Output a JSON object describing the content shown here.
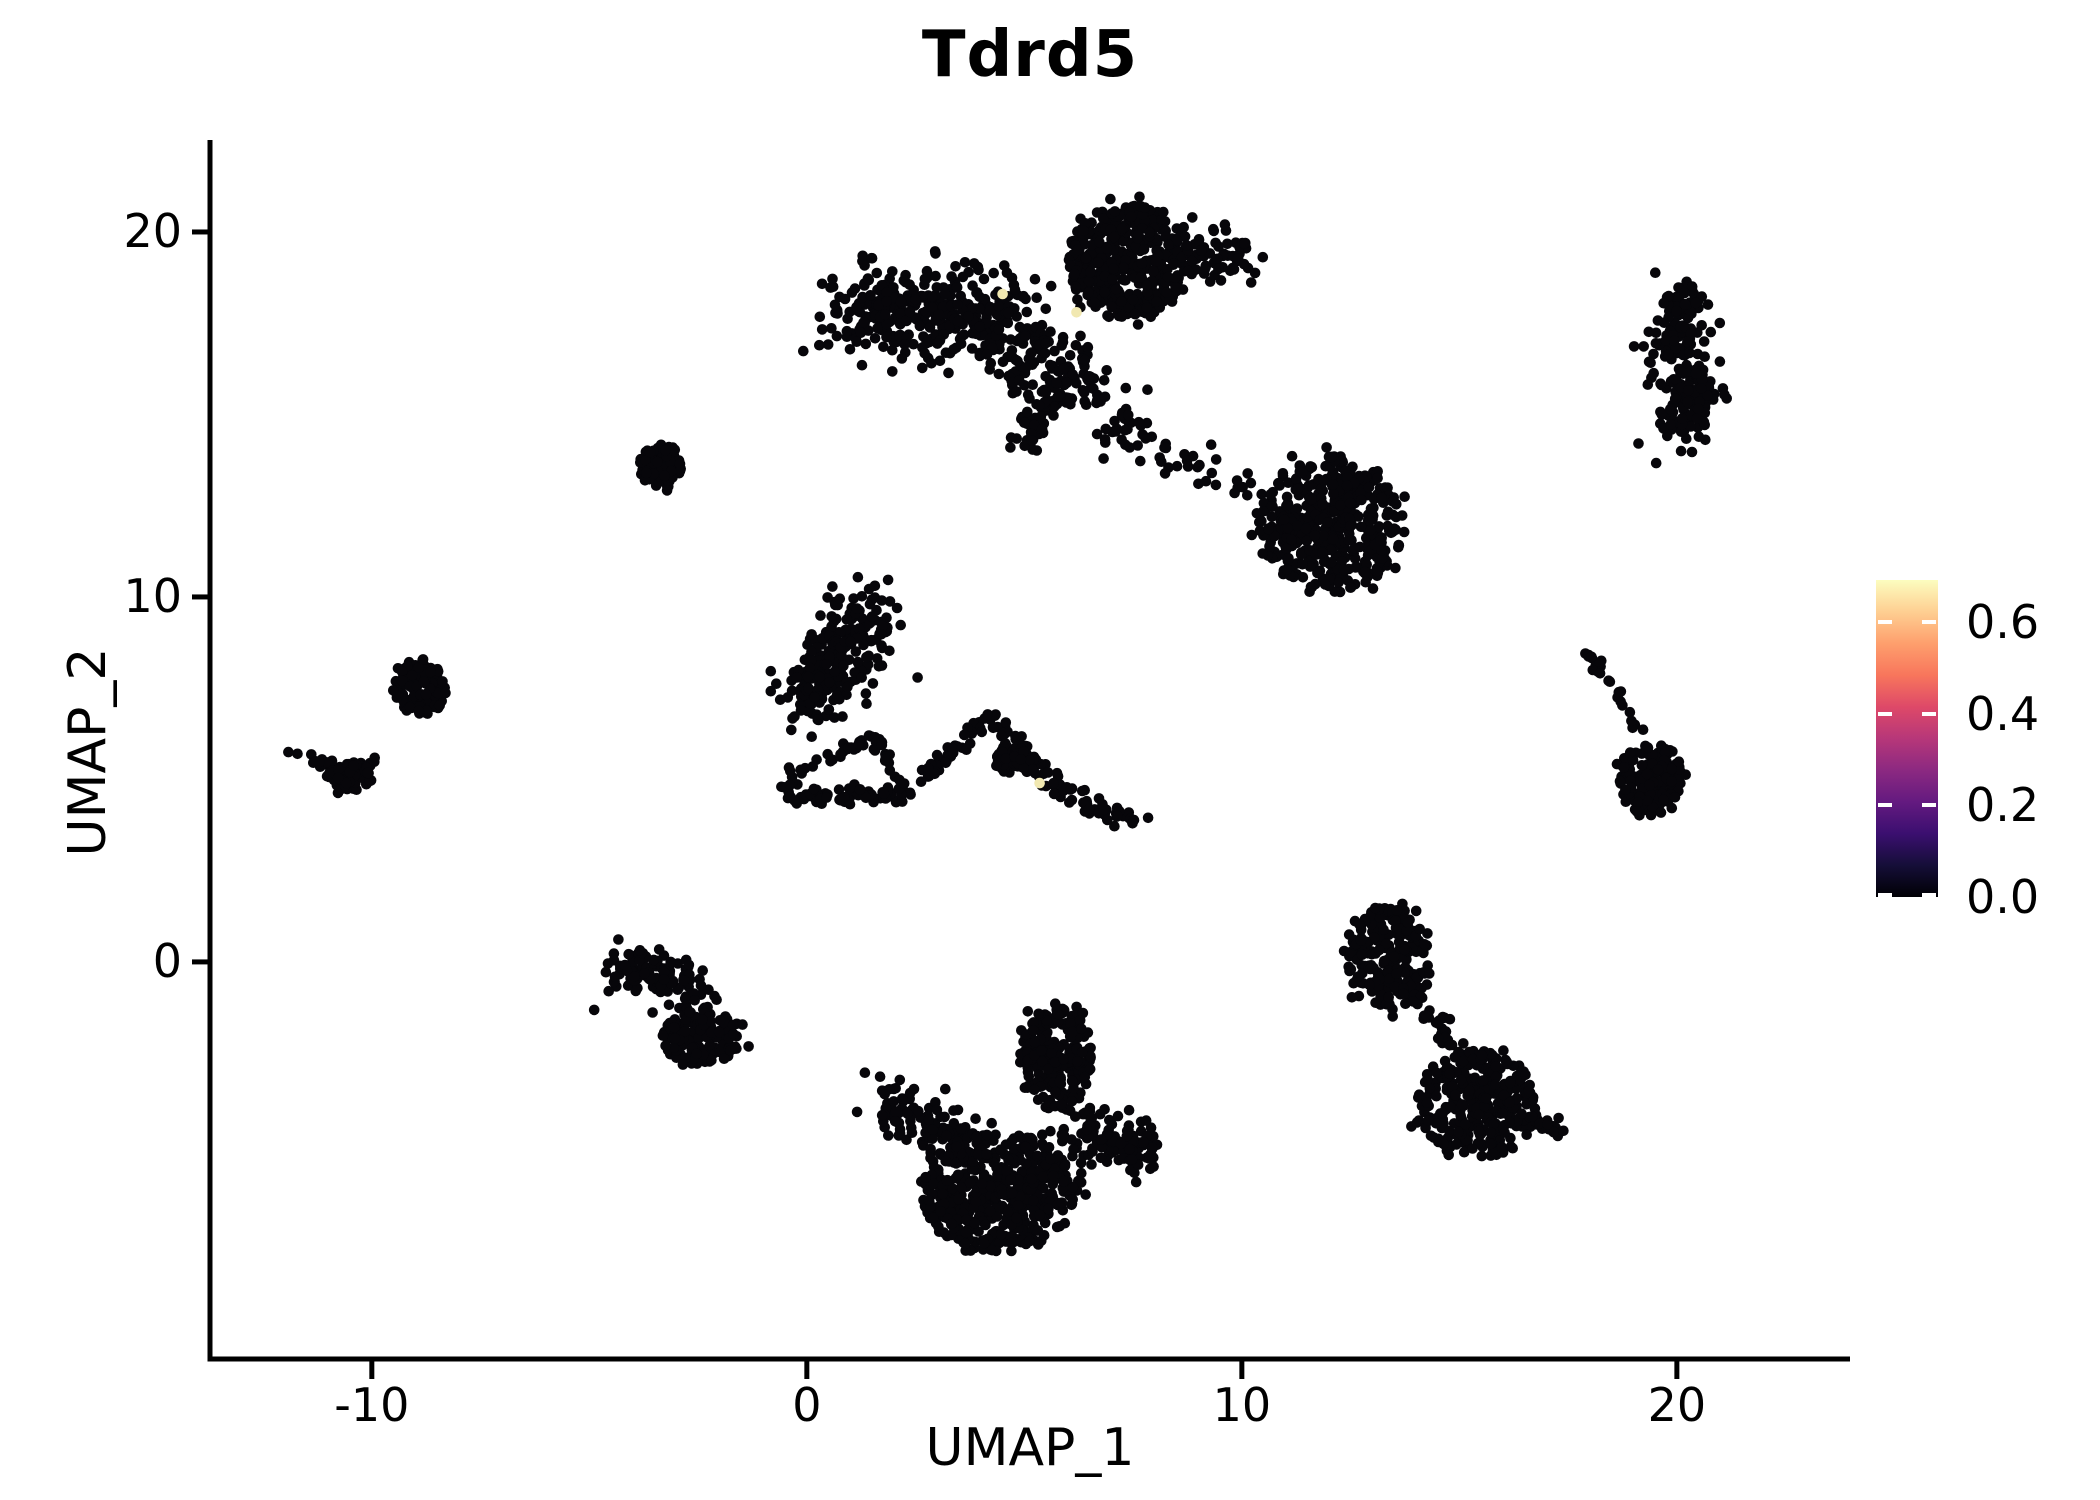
{
  "title": "Tdrd5",
  "chart_data": {
    "type": "scatter",
    "title": "Tdrd5",
    "xlabel": "UMAP_1",
    "ylabel": "UMAP_2",
    "xlim": [
      -13.72,
      23.98
    ],
    "ylim": [
      -10.88,
      22.52
    ],
    "x_ticks": [
      -10,
      0,
      10,
      20
    ],
    "x_tick_labels": [
      "-10",
      "0",
      "10",
      "20"
    ],
    "y_ticks": [
      0,
      10,
      20
    ],
    "y_tick_labels": [
      "0",
      "10",
      "20"
    ],
    "grid": false,
    "point_color": "#07060a",
    "highlight_color": "#f1e8b1",
    "point_radius_px": 5.3,
    "legend": {
      "position": "right",
      "vmin": 0.0,
      "vmax": 0.692,
      "colormap": "magma",
      "ticks": [
        0.0,
        0.2,
        0.4,
        0.6
      ],
      "tick_labels": [
        "0.0",
        "0.2",
        "0.4",
        "0.6"
      ],
      "gradient_stops_top_to_bottom": [
        "#fcfdbf",
        "#fecf92",
        "#fe9f6d",
        "#f8765c",
        "#de4968",
        "#b73779",
        "#8c2981",
        "#641a80",
        "#3b0f70",
        "#150e38",
        "#000004"
      ]
    },
    "clusters": [
      {
        "id": "top-band",
        "kind": "path",
        "points": [
          [
            1.0,
            17.5
          ],
          [
            2.0,
            17.9
          ],
          [
            3.1,
            17.8
          ],
          [
            4.2,
            17.5
          ],
          [
            5.0,
            17.3
          ]
        ],
        "sd": 0.55,
        "n": 400
      },
      {
        "id": "top-blob",
        "kind": "blob",
        "cx": 7.35,
        "cy": 19.2,
        "rx": 1.35,
        "ry": 1.6,
        "n": 430
      },
      {
        "id": "top-right-arm",
        "kind": "path",
        "points": [
          [
            8.5,
            19.0
          ],
          [
            9.2,
            19.6
          ],
          [
            10.0,
            19.3
          ]
        ],
        "sd": 0.38,
        "n": 80
      },
      {
        "id": "top-neck",
        "kind": "blob",
        "cx": 5.7,
        "cy": 16.2,
        "rx": 1.1,
        "ry": 1.1,
        "n": 90
      },
      {
        "id": "top-tail",
        "kind": "path",
        "points": [
          [
            5.7,
            15.7
          ],
          [
            5.3,
            14.9
          ],
          [
            4.95,
            14.2
          ]
        ],
        "sd": 0.17,
        "n": 60
      },
      {
        "id": "top-bridge",
        "kind": "path",
        "points": [
          [
            6.5,
            15.7
          ],
          [
            7.3,
            15.2
          ],
          [
            7.1,
            14.4
          ],
          [
            8.1,
            14.4
          ],
          [
            8.7,
            13.6
          ],
          [
            9.5,
            13.4
          ],
          [
            10.2,
            12.8
          ]
        ],
        "sd": 0.27,
        "n": 70
      },
      {
        "id": "mid-right-blob",
        "kind": "blob",
        "cx": 12.05,
        "cy": 12.0,
        "rx": 1.65,
        "ry": 1.9,
        "n": 460
      },
      {
        "id": "far-right-column",
        "kind": "path",
        "points": [
          [
            20.35,
            18.2
          ],
          [
            19.9,
            17.3
          ],
          [
            20.15,
            16.3
          ],
          [
            20.45,
            15.4
          ],
          [
            20.05,
            14.5
          ]
        ],
        "sd": 0.34,
        "n": 220
      },
      {
        "id": "right-hook-chain",
        "kind": "path",
        "points": [
          [
            17.9,
            8.55
          ],
          [
            18.35,
            7.9
          ],
          [
            18.75,
            7.1
          ],
          [
            19.05,
            6.3
          ]
        ],
        "sd": 0.07,
        "n": 26
      },
      {
        "id": "right-hook-blob",
        "kind": "blob",
        "cx": 19.4,
        "cy": 5.0,
        "rx": 0.75,
        "ry": 1.05,
        "n": 160
      },
      {
        "id": "bottom-right-top-lobe",
        "kind": "blob",
        "cx": 13.35,
        "cy": 0.1,
        "rx": 0.95,
        "ry": 1.45,
        "n": 240
      },
      {
        "id": "bottom-right-neck",
        "kind": "path",
        "points": [
          [
            14.15,
            -1.2
          ],
          [
            14.85,
            -2.3
          ],
          [
            15.25,
            -3.0
          ]
        ],
        "sd": 0.16,
        "n": 32
      },
      {
        "id": "bottom-right-bottom-lobe",
        "kind": "blob",
        "cx": 15.4,
        "cy": -3.9,
        "rx": 1.4,
        "ry": 1.5,
        "n": 320
      },
      {
        "id": "bottom-right-tail",
        "kind": "path",
        "points": [
          [
            16.6,
            -4.3
          ],
          [
            17.25,
            -4.6
          ]
        ],
        "sd": 0.14,
        "n": 18
      },
      {
        "id": "bottom-center-top-lobe",
        "kind": "blob",
        "cx": 5.75,
        "cy": -2.6,
        "rx": 0.85,
        "ry": 1.5,
        "n": 230
      },
      {
        "id": "bottom-center-left-arm",
        "kind": "path",
        "points": [
          [
            1.75,
            -3.7
          ],
          [
            2.7,
            -4.3
          ],
          [
            3.7,
            -4.9
          ]
        ],
        "sd": 0.36,
        "n": 95
      },
      {
        "id": "bottom-center-core",
        "kind": "blob",
        "cx": 4.4,
        "cy": -6.3,
        "rx": 1.75,
        "ry": 1.65,
        "n": 520
      },
      {
        "id": "bottom-center-right-arm",
        "kind": "path",
        "points": [
          [
            6.1,
            -4.6
          ],
          [
            7.0,
            -4.9
          ],
          [
            7.9,
            -5.15
          ]
        ],
        "sd": 0.33,
        "n": 115
      },
      {
        "id": "bottom-left-chain",
        "kind": "path",
        "points": [
          [
            -4.5,
            -0.3
          ],
          [
            -3.7,
            -0.2
          ],
          [
            -2.9,
            -0.6
          ],
          [
            -2.25,
            -1.05
          ]
        ],
        "sd": 0.27,
        "n": 115
      },
      {
        "id": "bottom-left-blob",
        "kind": "blob",
        "cx": -2.4,
        "cy": -2.1,
        "rx": 0.95,
        "ry": 0.75,
        "n": 160
      },
      {
        "id": "left-small-blob",
        "kind": "blob",
        "cx": -8.9,
        "cy": 7.5,
        "rx": 0.62,
        "ry": 0.8,
        "n": 105
      },
      {
        "id": "far-left-chain",
        "kind": "path",
        "points": [
          [
            -11.9,
            5.9
          ],
          [
            -11.35,
            5.6
          ],
          [
            -10.95,
            5.35
          ]
        ],
        "sd": 0.06,
        "n": 14
      },
      {
        "id": "far-left-blob",
        "kind": "blob",
        "cx": -10.5,
        "cy": 5.05,
        "rx": 0.52,
        "ry": 0.42,
        "n": 85
      },
      {
        "id": "far-left-hook",
        "kind": "path",
        "points": [
          [
            -10.15,
            5.2
          ],
          [
            -9.95,
            5.55
          ]
        ],
        "sd": 0.07,
        "n": 10
      },
      {
        "id": "upper-small-blob",
        "kind": "blob",
        "cx": -3.35,
        "cy": 13.6,
        "rx": 0.5,
        "ry": 0.62,
        "n": 80
      },
      {
        "id": "center-diagonal-blob",
        "kind": "path",
        "points": [
          [
            -0.15,
            7.0
          ],
          [
            0.5,
            8.0
          ],
          [
            1.1,
            8.9
          ],
          [
            1.5,
            9.7
          ]
        ],
        "sd": 0.44,
        "n": 250
      },
      {
        "id": "web-bottom-edge",
        "kind": "path",
        "points": [
          [
            -0.45,
            4.55
          ],
          [
            0.4,
            4.5
          ],
          [
            1.2,
            4.6
          ],
          [
            1.95,
            4.55
          ],
          [
            2.4,
            4.72
          ]
        ],
        "sd": 0.1,
        "n": 70
      },
      {
        "id": "web-top-edge",
        "kind": "path",
        "points": [
          [
            -0.42,
            5.15
          ],
          [
            0.5,
            5.6
          ],
          [
            1.5,
            6.15
          ]
        ],
        "sd": 0.09,
        "n": 26
      },
      {
        "id": "web-right-edge",
        "kind": "path",
        "points": [
          [
            1.5,
            6.15
          ],
          [
            1.95,
            5.4
          ],
          [
            2.35,
            4.8
          ]
        ],
        "sd": 0.09,
        "n": 20
      },
      {
        "id": "web-left-edge",
        "kind": "path",
        "points": [
          [
            -0.45,
            4.6
          ],
          [
            -0.4,
            5.1
          ]
        ],
        "sd": 0.06,
        "n": 8
      },
      {
        "id": "center-mountain",
        "kind": "path",
        "points": [
          [
            2.45,
            4.8
          ],
          [
            3.1,
            5.5
          ],
          [
            3.7,
            6.15
          ],
          [
            4.2,
            6.7
          ],
          [
            4.7,
            6.1
          ],
          [
            5.1,
            5.5
          ],
          [
            5.5,
            5.0
          ],
          [
            6.1,
            4.55
          ],
          [
            6.7,
            4.2
          ],
          [
            7.3,
            3.95
          ],
          [
            7.55,
            3.85
          ]
        ],
        "sd": 0.11,
        "n": 135
      },
      {
        "id": "center-mountain-knot",
        "kind": "blob",
        "cx": 4.8,
        "cy": 5.55,
        "rx": 0.5,
        "ry": 0.45,
        "n": 55
      }
    ],
    "highlight_points": [
      {
        "x": 4.5,
        "y": 18.3,
        "value": 0.6
      },
      {
        "x": 6.2,
        "y": 17.8,
        "value": 0.6
      },
      {
        "x": 5.35,
        "y": 4.9,
        "value": 0.6
      }
    ]
  }
}
